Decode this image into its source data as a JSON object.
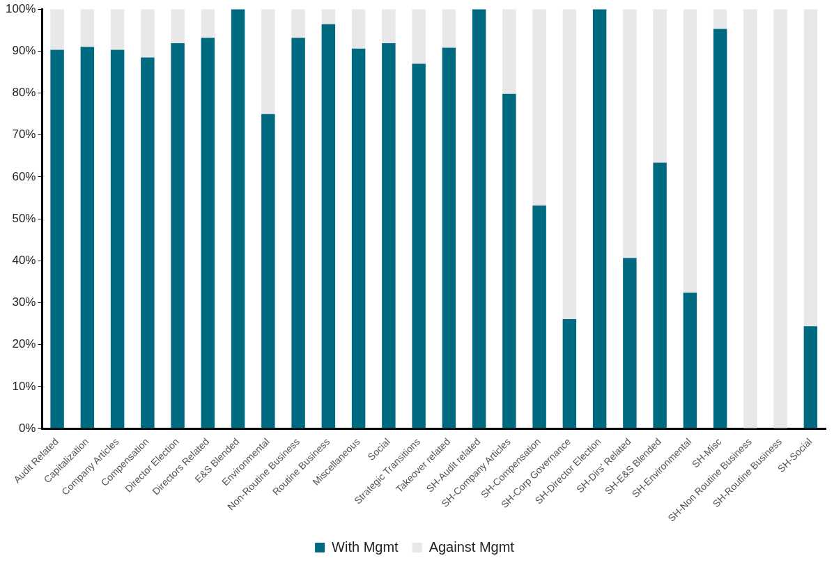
{
  "chart_data": {
    "type": "bar",
    "stacked": true,
    "categories": [
      "Audit Related",
      "Capitalization",
      "Company Articles",
      "Compensation",
      "Director Election",
      "Directors Related",
      "E&S Blended",
      "Environmental",
      "Non-Routine Business",
      "Routine Business",
      "Miscellaneous",
      "Social",
      "Strategic Transitions",
      "Takeover related",
      "SH-Audit related",
      "SH-Company Articles",
      "SH-Compensation",
      "SH-Corp Governance",
      "SH-Director Election",
      "SH-Dirs' Related",
      "SH-E&S Blended",
      "SH-Environmental",
      "SH-Misc",
      "SH-Non Routine Business",
      "SH-Routine Business",
      "SH-Social"
    ],
    "series": [
      {
        "name": "With Mgmt",
        "color": "#006b80",
        "values": [
          90.3,
          91.0,
          90.3,
          88.5,
          91.9,
          93.2,
          100,
          75.0,
          93.2,
          96.4,
          90.6,
          91.9,
          87.0,
          90.8,
          100,
          79.8,
          53.2,
          26.1,
          100,
          40.7,
          63.4,
          32.4,
          95.3,
          0,
          0,
          24.4
        ]
      },
      {
        "name": "Against Mgmt",
        "color": "#e8e8ea",
        "values": [
          9.7,
          9.0,
          9.7,
          11.5,
          8.1,
          6.8,
          0,
          25.0,
          6.8,
          3.6,
          9.4,
          8.1,
          13.0,
          9.2,
          0,
          20.2,
          46.8,
          73.9,
          0,
          59.3,
          36.6,
          67.6,
          4.7,
          100,
          100,
          75.6
        ]
      }
    ],
    "ylim": [
      0,
      100
    ],
    "yticks": [
      {
        "value": 0,
        "label": "0%"
      },
      {
        "value": 10,
        "label": "10%"
      },
      {
        "value": 20,
        "label": "20%"
      },
      {
        "value": 30,
        "label": "30%"
      },
      {
        "value": 40,
        "label": "40%"
      },
      {
        "value": 50,
        "label": "50%"
      },
      {
        "value": 60,
        "label": "60%"
      },
      {
        "value": 70,
        "label": "70%"
      },
      {
        "value": 80,
        "label": "80%"
      },
      {
        "value": 90,
        "label": "90%"
      },
      {
        "value": 100,
        "label": "100%"
      }
    ],
    "grid": false,
    "legend": "bottom"
  }
}
